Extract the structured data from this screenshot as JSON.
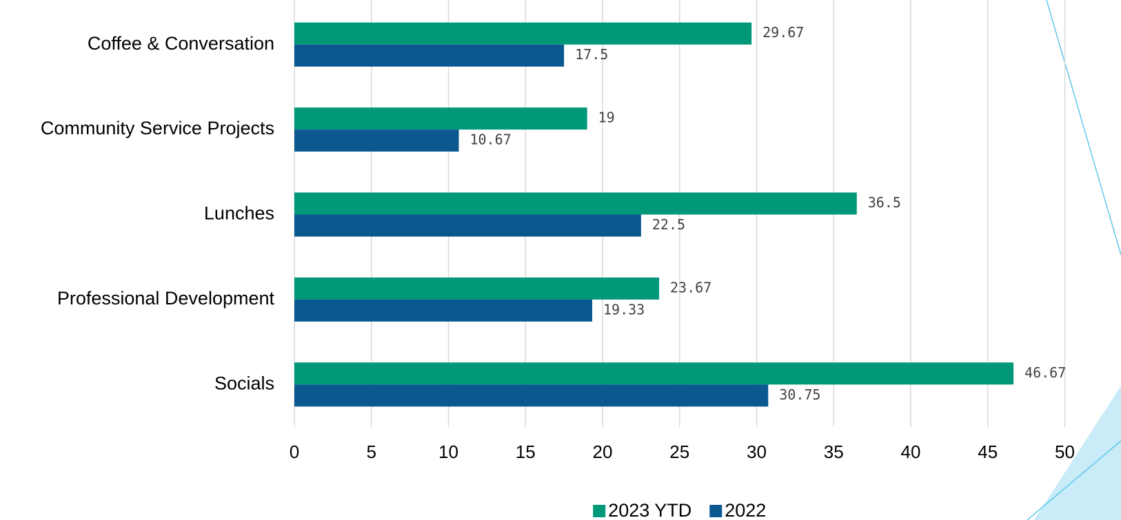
{
  "chart_data": {
    "type": "hbar",
    "categories": [
      "Coffee & Conversation",
      "Community Service Projects",
      "Lunches",
      "Professional Development",
      "Socials"
    ],
    "series": [
      {
        "name": "2023 YTD",
        "color": "#009878",
        "values": [
          29.67,
          19,
          36.5,
          23.67,
          46.67
        ]
      },
      {
        "name": "2022",
        "color": "#0b5890",
        "values": [
          17.5,
          10.67,
          22.5,
          19.33,
          30.75
        ]
      }
    ],
    "xlim": [
      0,
      50
    ],
    "xticks": [
      0,
      5,
      10,
      15,
      20,
      25,
      30,
      35,
      40,
      45,
      50
    ],
    "grid": true,
    "legend": "bottom"
  }
}
